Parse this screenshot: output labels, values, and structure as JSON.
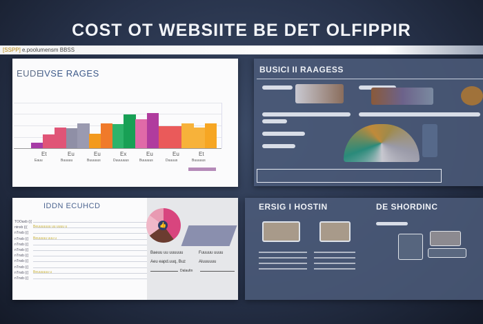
{
  "title": "COST OT WEBSIITE BE DET OLFIPPIR",
  "topbar": {
    "accent": "[SSPP]",
    "text": "e.poolumensm BBSS"
  },
  "panel_chart": {
    "title_a": "EUDE",
    "title_b": "IVSE RAGES",
    "bars": [
      {
        "color": "#a63ca6",
        "value": 0.12
      },
      {
        "color": "#e05577",
        "value": 0.31
      },
      {
        "color": "#e05577",
        "value": 0.45
      },
      {
        "color": "#8f8fa6",
        "value": 0.44
      },
      {
        "color": "#9a9ab0",
        "value": 0.54
      },
      {
        "color": "#f39a1e",
        "value": 0.32
      },
      {
        "color": "#f07a2a",
        "value": 0.54
      },
      {
        "color": "#2db36a",
        "value": 0.53
      },
      {
        "color": "#18a055",
        "value": 0.75
      },
      {
        "color": "#e06aa8",
        "value": 0.63
      },
      {
        "color": "#b03c9e",
        "value": 0.78
      },
      {
        "color": "#ea5a5a",
        "value": 0.49
      },
      {
        "color": "#ea5a5a",
        "value": 0.48
      },
      {
        "color": "#f7b23a",
        "value": 0.54
      },
      {
        "color": "#f7b23a",
        "value": 0.45
      },
      {
        "color": "#f6a623",
        "value": 0.54
      }
    ],
    "x_labels": [
      "Et",
      "Eu",
      "Eu",
      "Ex",
      "Eu",
      "Eu",
      "Et"
    ],
    "sub_labels": [
      "Eauu",
      "Buuuuu",
      "Buuuuus",
      "Duuuuuus",
      "Buuuuus",
      "Duuuus",
      "Buuuuus"
    ]
  },
  "panel_business": {
    "title": "BUSICI II RAAGESS"
  },
  "panel_dashboard": {
    "title": "IDDN ECUHCD",
    "rows": [
      "TOOaxb (((",
      "ntnxb (((",
      "nTnxb (((",
      "nTnxb (((",
      "nTnxb (((",
      "nTnxb (((",
      "nTnxb (((",
      "nTnxb (((",
      "nTnxb (((",
      "nTnxb (((",
      "nTnxb ((("
    ],
    "highlights": [
      "Beuuuuuuu uu uuuu u",
      "Beuuuuu uuu u",
      "Beuuuuuu u"
    ],
    "caption_1": "Baeuu uu uuuuuu",
    "caption_2": "Aeu eapd.uuq, Buz",
    "caption_3": "Fuuuuu uuuu",
    "caption_4": "Aluuuuuu",
    "slider_label": "Dalaultn",
    "pie": [
      {
        "color": "#d8457e",
        "value": 0.4
      },
      {
        "color": "#6b3c30",
        "value": 0.25
      },
      {
        "color": "#f0b8c8",
        "value": 0.2
      },
      {
        "color": "#e89ab2",
        "value": 0.15
      }
    ]
  },
  "panel_hosting": {
    "title": "ERSIG I HOSTIN"
  },
  "panel_design": {
    "title": "DE SHORDINC"
  }
}
